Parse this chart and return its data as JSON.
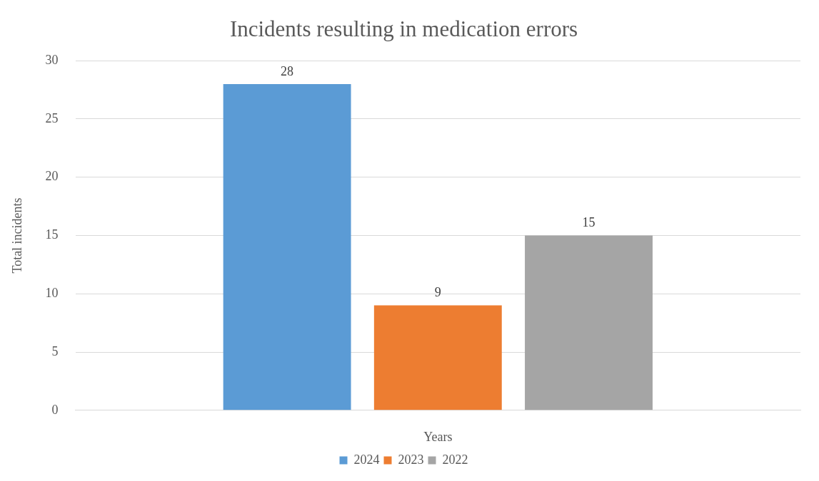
{
  "chart_data": {
    "type": "bar",
    "title": "Incidents resulting in medication errors",
    "xlabel": "Years",
    "ylabel": "Total incidents",
    "categories": [
      null
    ],
    "series": [
      {
        "name": "2024",
        "color": "#5b9bd5",
        "values": [
          28
        ]
      },
      {
        "name": "2023",
        "color": "#ed7d31",
        "values": [
          9
        ]
      },
      {
        "name": "2022",
        "color": "#a5a5a5",
        "values": [
          15
        ]
      }
    ],
    "ylim": [
      0,
      30
    ],
    "yticks": [
      0,
      5,
      10,
      15,
      20,
      25,
      30
    ],
    "grid": "y",
    "legend": "bottom",
    "data_labels": true
  }
}
